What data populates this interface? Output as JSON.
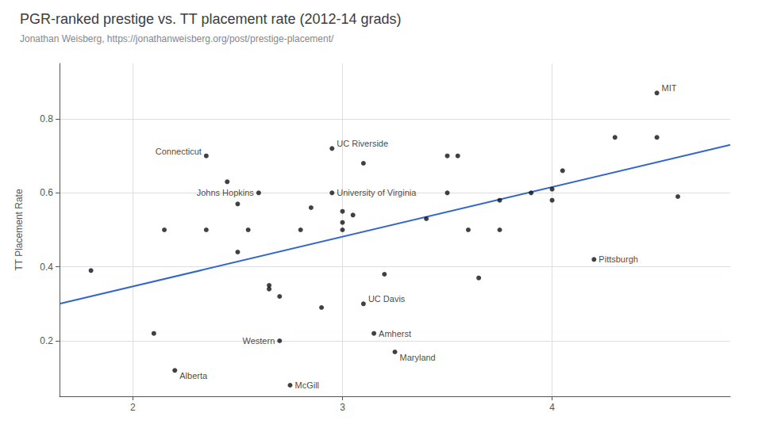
{
  "chart_data": {
    "type": "scatter",
    "title": "PGR-ranked prestige vs. TT placement rate (2012-14 grads)",
    "subtitle": "Jonathan Weisberg, https://jonathanweisberg.org/post/prestige-placement/",
    "ylabel": "TT Placement Rate",
    "xlim": [
      1.65,
      4.85
    ],
    "ylim": [
      0.05,
      0.95
    ],
    "xticks": [
      2,
      3,
      4
    ],
    "yticks": [
      0.2,
      0.4,
      0.6,
      0.8
    ],
    "grid": true,
    "series": [
      {
        "type": "scatter",
        "color": "#111111",
        "x": [
          1.8,
          2.1,
          2.15,
          2.2,
          2.35,
          2.35,
          2.45,
          2.5,
          2.5,
          2.55,
          2.6,
          2.65,
          2.65,
          2.7,
          2.7,
          2.75,
          2.8,
          2.85,
          2.9,
          2.95,
          2.95,
          3.0,
          3.0,
          3.0,
          3.05,
          3.1,
          3.1,
          3.15,
          3.2,
          3.25,
          3.4,
          3.5,
          3.5,
          3.55,
          3.6,
          3.65,
          3.75,
          3.75,
          3.9,
          4.0,
          4.0,
          4.05,
          4.2,
          4.3,
          4.5,
          4.5,
          4.6
        ],
        "values": [
          0.39,
          0.22,
          0.5,
          0.12,
          0.5,
          0.7,
          0.63,
          0.57,
          0.44,
          0.5,
          0.6,
          0.35,
          0.34,
          0.32,
          0.2,
          0.08,
          0.5,
          0.56,
          0.29,
          0.6,
          0.72,
          0.55,
          0.52,
          0.5,
          0.54,
          0.3,
          0.68,
          0.22,
          0.38,
          0.17,
          0.53,
          0.6,
          0.7,
          0.7,
          0.5,
          0.37,
          0.58,
          0.5,
          0.6,
          0.61,
          0.58,
          0.66,
          0.42,
          0.75,
          0.87,
          0.75,
          0.59
        ]
      },
      {
        "type": "line",
        "color": "#3366cc",
        "x": [
          1.65,
          4.85
        ],
        "values": [
          0.3,
          0.73
        ]
      }
    ],
    "annotations": [
      {
        "text": "Connecticut",
        "x": 2.35,
        "y": 0.7
      },
      {
        "text": "Alberta",
        "x": 2.2,
        "y": 0.12
      },
      {
        "text": "Johns Hopkins",
        "x": 2.6,
        "y": 0.6
      },
      {
        "text": "UC Riverside",
        "x": 2.95,
        "y": 0.72
      },
      {
        "text": "University of Virginia",
        "x": 2.95,
        "y": 0.6
      },
      {
        "text": "UC Davis",
        "x": 3.1,
        "y": 0.3
      },
      {
        "text": "Amherst",
        "x": 3.15,
        "y": 0.22
      },
      {
        "text": "Maryland",
        "x": 3.25,
        "y": 0.17
      },
      {
        "text": "Western",
        "x": 2.7,
        "y": 0.2
      },
      {
        "text": "McGill",
        "x": 2.75,
        "y": 0.08
      },
      {
        "text": "Pittsburgh",
        "x": 4.2,
        "y": 0.42
      },
      {
        "text": "MIT",
        "x": 4.5,
        "y": 0.87
      }
    ]
  }
}
